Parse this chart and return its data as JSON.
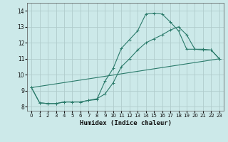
{
  "xlabel": "Humidex (Indice chaleur)",
  "background_color": "#cce9e9",
  "grid_color": "#b0cccc",
  "line_color": "#2a7a6a",
  "xlim": [
    -0.5,
    23.5
  ],
  "ylim": [
    7.75,
    14.5
  ],
  "yticks": [
    8,
    9,
    10,
    11,
    12,
    13,
    14
  ],
  "xticks": [
    0,
    1,
    2,
    3,
    4,
    5,
    6,
    7,
    8,
    9,
    10,
    11,
    12,
    13,
    14,
    15,
    16,
    17,
    18,
    19,
    20,
    21,
    22,
    23
  ],
  "series": [
    {
      "x": [
        0,
        1,
        2,
        3,
        4,
        5,
        6,
        7,
        8,
        9,
        10,
        11,
        12,
        13,
        14,
        15,
        16,
        17,
        18,
        19,
        20,
        21,
        22,
        23
      ],
      "y": [
        9.2,
        8.25,
        8.2,
        8.2,
        8.3,
        8.3,
        8.3,
        8.4,
        8.45,
        9.6,
        10.4,
        11.65,
        12.2,
        12.75,
        13.8,
        13.85,
        13.8,
        13.3,
        12.75,
        11.6,
        11.6,
        11.55,
        11.55,
        11.0
      ],
      "has_markers": true
    },
    {
      "x": [
        0,
        1,
        2,
        3,
        4,
        5,
        6,
        7,
        8,
        9,
        10,
        11,
        12,
        13,
        14,
        15,
        16,
        17,
        18,
        19,
        20,
        21,
        22,
        23
      ],
      "y": [
        9.2,
        8.25,
        8.2,
        8.2,
        8.3,
        8.3,
        8.3,
        8.4,
        8.5,
        8.8,
        9.5,
        10.5,
        11.0,
        11.55,
        12.0,
        12.25,
        12.5,
        12.8,
        13.0,
        12.5,
        11.6,
        11.6,
        11.55,
        11.0
      ],
      "has_markers": true
    },
    {
      "x": [
        0,
        23
      ],
      "y": [
        9.2,
        11.0
      ],
      "has_markers": false
    }
  ]
}
